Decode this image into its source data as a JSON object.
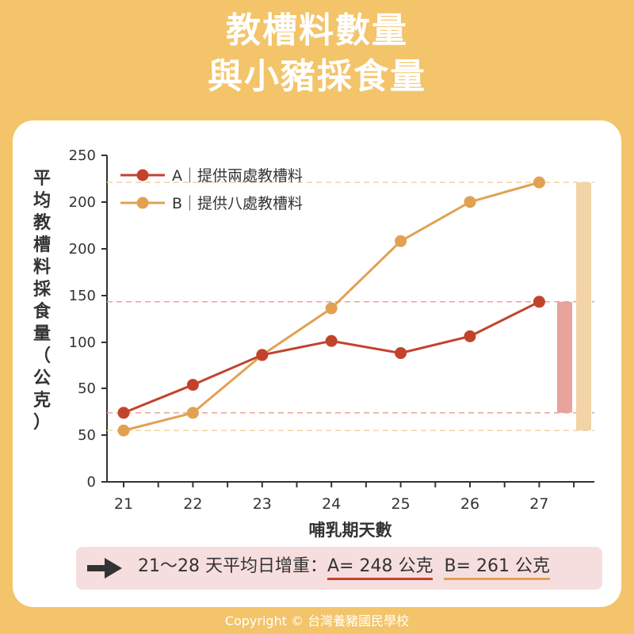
{
  "title_line1": "教槽料數量",
  "title_line2": "與小豬採食量",
  "copyright": "Copyright © 台灣養豬國民學校",
  "summary": {
    "prefix": "21～28 天平均日增重：",
    "a_text": "A= 248 公克",
    "b_text": "B= 261 公克"
  },
  "chart_data": {
    "type": "line",
    "ylabel": "平均教槽料採食量（公克）",
    "xlabel": "哺乳期天數",
    "categories": [
      "21",
      "22",
      "23",
      "24",
      "25",
      "26",
      "27"
    ],
    "y_tick_labels": [
      "0",
      "50",
      "50",
      "100",
      "150",
      "200",
      "200",
      "250"
    ],
    "series": [
      {
        "name": "A｜提供兩處教槽料",
        "color": "#c2432c",
        "values": [
          74,
          104,
          136,
          151,
          138,
          156,
          193
        ]
      },
      {
        "name": "B｜提供八處教槽料",
        "color": "#e1a152",
        "values": [
          55,
          74,
          136,
          186,
          258,
          300,
          321
        ]
      }
    ],
    "legend_position": "top-left",
    "grid": false,
    "colors": {
      "a": "#c2432c",
      "b": "#e1a152",
      "bar_a": "#e8a39b",
      "bar_b": "#f2d4a6"
    }
  }
}
